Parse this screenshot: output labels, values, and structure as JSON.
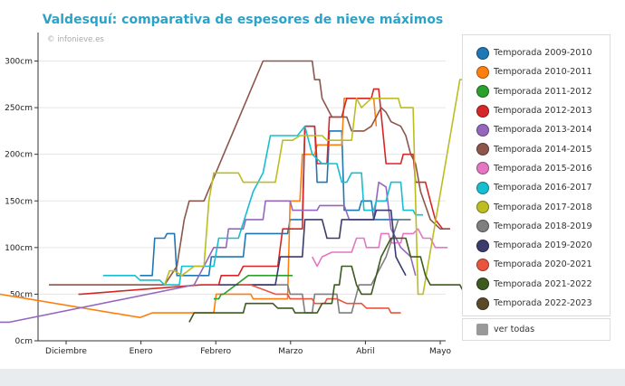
{
  "title": "Valdesquí: comparativa de espesores de nieve máximos",
  "watermark": "© infonieve.es",
  "show_all_label": "ver todas",
  "chart_data": {
    "type": "line",
    "title": "Valdesquí: comparativa de espesores de nieve máximos",
    "xlabel": "",
    "ylabel": "",
    "x_ticks": [
      "Diciembre",
      "Enero",
      "Febrero",
      "Marzo",
      "Abril",
      "Mayo"
    ],
    "y_ticks": [
      "0cm",
      "50cm",
      "100cm",
      "150cm",
      "200cm",
      "250cm",
      "300cm"
    ],
    "ylim": [
      0,
      330
    ],
    "xlim": [
      -40,
      233
    ],
    "grid": true,
    "legend_position": "right",
    "series": [
      {
        "name": "Temporada 2009-2010",
        "color": "#1f77b4",
        "points": [
          [
            30,
            70
          ],
          [
            35,
            70
          ],
          [
            36,
            110
          ],
          [
            40,
            110
          ],
          [
            41,
            115
          ],
          [
            44,
            115
          ],
          [
            45,
            70
          ],
          [
            58,
            70
          ],
          [
            59,
            90
          ],
          [
            72,
            90
          ],
          [
            73,
            115
          ],
          [
            90,
            115
          ],
          [
            91,
            130
          ],
          [
            96,
            130
          ],
          [
            97,
            230
          ],
          [
            101,
            230
          ],
          [
            102,
            170
          ],
          [
            106,
            170
          ],
          [
            107,
            225
          ],
          [
            112,
            225
          ],
          [
            113,
            140
          ],
          [
            119,
            140
          ],
          [
            120,
            150
          ],
          [
            124,
            150
          ],
          [
            125,
            130
          ],
          [
            140,
            130
          ]
        ]
      },
      {
        "name": "Temporada 2010-2011",
        "color": "#ff7f0e",
        "points": [
          [
            -31,
            50
          ],
          [
            -27,
            50
          ],
          [
            30,
            25
          ],
          [
            35,
            30
          ],
          [
            60,
            30
          ],
          [
            61,
            50
          ],
          [
            75,
            50
          ],
          [
            76,
            45
          ],
          [
            90,
            45
          ],
          [
            91,
            150
          ],
          [
            95,
            150
          ],
          [
            96,
            200
          ],
          [
            101,
            200
          ],
          [
            102,
            210
          ],
          [
            112,
            210
          ],
          [
            113,
            260
          ],
          [
            125,
            260
          ],
          [
            126,
            230
          ]
        ]
      },
      {
        "name": "Temporada 2011-2012",
        "color": "#2ca02c",
        "points": [
          [
            60,
            45
          ],
          [
            62,
            45
          ],
          [
            63,
            50
          ],
          [
            64,
            50
          ],
          [
            74,
            70
          ],
          [
            92,
            70
          ]
        ]
      },
      {
        "name": "Temporada 2012-2013",
        "color": "#d62728",
        "points": [
          [
            5,
            50
          ],
          [
            6,
            50
          ],
          [
            55,
            60
          ],
          [
            62,
            60
          ],
          [
            63,
            70
          ],
          [
            70,
            70
          ],
          [
            72,
            80
          ],
          [
            86,
            80
          ],
          [
            88,
            120
          ],
          [
            96,
            120
          ],
          [
            97,
            230
          ],
          [
            101,
            230
          ],
          [
            102,
            190
          ],
          [
            106,
            190
          ],
          [
            107,
            240
          ],
          [
            112,
            240
          ],
          [
            113,
            250
          ],
          [
            114,
            260
          ],
          [
            124,
            260
          ],
          [
            125,
            270
          ],
          [
            127,
            270
          ],
          [
            130,
            190
          ],
          [
            136,
            190
          ],
          [
            137,
            200
          ],
          [
            141,
            200
          ],
          [
            142,
            170
          ],
          [
            146,
            170
          ],
          [
            148,
            150
          ],
          [
            150,
            130
          ],
          [
            153,
            120
          ],
          [
            156,
            120
          ]
        ]
      },
      {
        "name": "Temporada 2013-2014",
        "color": "#9467bd",
        "points": [
          [
            -27,
            20
          ],
          [
            -23,
            20
          ],
          [
            52,
            60
          ],
          [
            56,
            80
          ],
          [
            60,
            100
          ],
          [
            65,
            100
          ],
          [
            66,
            120
          ],
          [
            72,
            120
          ],
          [
            73,
            130
          ],
          [
            80,
            130
          ],
          [
            81,
            150
          ],
          [
            91,
            150
          ],
          [
            92,
            140
          ],
          [
            102,
            140
          ],
          [
            103,
            145
          ],
          [
            113,
            145
          ],
          [
            115,
            130
          ],
          [
            125,
            130
          ],
          [
            127,
            170
          ],
          [
            130,
            165
          ],
          [
            132,
            120
          ],
          [
            136,
            100
          ],
          [
            140,
            90
          ],
          [
            141,
            80
          ],
          [
            142,
            70
          ]
        ]
      },
      {
        "name": "Temporada 2014-2015",
        "color": "#8c564b",
        "points": [
          [
            -7,
            60
          ],
          [
            40,
            60
          ],
          [
            45,
            80
          ],
          [
            48,
            130
          ],
          [
            50,
            150
          ],
          [
            56,
            150
          ],
          [
            80,
            300
          ],
          [
            100,
            300
          ],
          [
            101,
            280
          ],
          [
            103,
            280
          ],
          [
            104,
            260
          ],
          [
            108,
            240
          ],
          [
            114,
            240
          ],
          [
            116,
            225
          ],
          [
            121,
            225
          ],
          [
            124,
            230
          ],
          [
            128,
            250
          ],
          [
            130,
            245
          ],
          [
            132,
            235
          ],
          [
            136,
            230
          ],
          [
            138,
            220
          ],
          [
            140,
            200
          ],
          [
            142,
            190
          ],
          [
            144,
            160
          ],
          [
            148,
            130
          ],
          [
            152,
            120
          ],
          [
            156,
            120
          ]
        ]
      },
      {
        "name": "Temporada 2015-2016",
        "color": "#e377c2",
        "points": [
          [
            100,
            90
          ],
          [
            102,
            80
          ],
          [
            104,
            90
          ],
          [
            108,
            95
          ],
          [
            116,
            95
          ],
          [
            118,
            110
          ],
          [
            121,
            110
          ],
          [
            122,
            100
          ],
          [
            127,
            100
          ],
          [
            128,
            115
          ],
          [
            131,
            115
          ],
          [
            132,
            105
          ],
          [
            136,
            105
          ],
          [
            137,
            115
          ],
          [
            141,
            115
          ],
          [
            143,
            120
          ],
          [
            145,
            110
          ],
          [
            148,
            110
          ],
          [
            150,
            100
          ],
          [
            155,
            100
          ]
        ]
      },
      {
        "name": "Temporada 2016-2017",
        "color": "#17becf",
        "points": [
          [
            15,
            70
          ],
          [
            28,
            70
          ],
          [
            30,
            65
          ],
          [
            38,
            65
          ],
          [
            40,
            60
          ],
          [
            46,
            60
          ],
          [
            47,
            80
          ],
          [
            60,
            80
          ],
          [
            62,
            110
          ],
          [
            70,
            110
          ],
          [
            76,
            160
          ],
          [
            80,
            180
          ],
          [
            83,
            220
          ],
          [
            94,
            220
          ],
          [
            97,
            230
          ],
          [
            100,
            200
          ],
          [
            104,
            190
          ],
          [
            110,
            190
          ],
          [
            112,
            170
          ],
          [
            114,
            170
          ],
          [
            116,
            180
          ],
          [
            120,
            180
          ],
          [
            121,
            140
          ],
          [
            125,
            140
          ],
          [
            126,
            150
          ],
          [
            130,
            150
          ],
          [
            132,
            170
          ],
          [
            136,
            170
          ],
          [
            137,
            140
          ],
          [
            141,
            140
          ],
          [
            142,
            135
          ],
          [
            145,
            135
          ]
        ]
      },
      {
        "name": "Temporada 2017-2018",
        "color": "#bcbd22",
        "points": [
          [
            40,
            60
          ],
          [
            42,
            75
          ],
          [
            44,
            75
          ],
          [
            47,
            70
          ],
          [
            52,
            80
          ],
          [
            56,
            80
          ],
          [
            58,
            150
          ],
          [
            60,
            180
          ],
          [
            70,
            180
          ],
          [
            72,
            170
          ],
          [
            85,
            170
          ],
          [
            88,
            215
          ],
          [
            92,
            215
          ],
          [
            95,
            220
          ],
          [
            104,
            220
          ],
          [
            106,
            215
          ],
          [
            116,
            215
          ],
          [
            118,
            260
          ],
          [
            120,
            250
          ],
          [
            122,
            255
          ],
          [
            124,
            260
          ],
          [
            135,
            260
          ],
          [
            136,
            250
          ],
          [
            141,
            250
          ],
          [
            143,
            50
          ],
          [
            145,
            50
          ],
          [
            160,
            280
          ],
          [
            165,
            280
          ],
          [
            168,
            260
          ],
          [
            171,
            220
          ],
          [
            173,
            200
          ],
          [
            175,
            180
          ],
          [
            178,
            160
          ],
          [
            181,
            150
          ],
          [
            185,
            150
          ]
        ]
      },
      {
        "name": "Temporada 2018-2019",
        "color": "#7f7f7f",
        "points": [
          [
            74,
            60
          ],
          [
            80,
            60
          ],
          [
            90,
            60
          ],
          [
            91,
            50
          ],
          [
            96,
            50
          ],
          [
            97,
            30
          ],
          [
            100,
            30
          ],
          [
            101,
            50
          ],
          [
            110,
            50
          ],
          [
            111,
            30
          ],
          [
            116,
            30
          ],
          [
            119,
            60
          ],
          [
            124,
            60
          ],
          [
            130,
            90
          ],
          [
            135,
            130
          ],
          [
            140,
            130
          ]
        ]
      },
      {
        "name": "Temporada 2019-2020",
        "color": "#3b3b6e",
        "points": [
          [
            62,
            60
          ],
          [
            85,
            60
          ],
          [
            87,
            90
          ],
          [
            96,
            90
          ],
          [
            97,
            130
          ],
          [
            104,
            130
          ],
          [
            106,
            110
          ],
          [
            111,
            110
          ],
          [
            112,
            130
          ],
          [
            125,
            130
          ],
          [
            126,
            140
          ],
          [
            132,
            140
          ],
          [
            134,
            90
          ],
          [
            136,
            80
          ],
          [
            138,
            70
          ]
        ]
      },
      {
        "name": "Temporada 2020-2021",
        "color": "#e8553e",
        "points": [
          [
            70,
            60
          ],
          [
            75,
            60
          ],
          [
            80,
            55
          ],
          [
            85,
            50
          ],
          [
            90,
            50
          ],
          [
            91,
            45
          ],
          [
            100,
            45
          ],
          [
            101,
            40
          ],
          [
            105,
            40
          ],
          [
            106,
            45
          ],
          [
            110,
            45
          ],
          [
            114,
            40
          ],
          [
            120,
            40
          ],
          [
            122,
            35
          ],
          [
            131,
            35
          ],
          [
            132,
            30
          ],
          [
            136,
            30
          ]
        ]
      },
      {
        "name": "Temporada 2021-2022",
        "color": "#3d5a1f",
        "points": [
          [
            50,
            20
          ],
          [
            52,
            30
          ],
          [
            72,
            30
          ],
          [
            73,
            40
          ],
          [
            84,
            40
          ],
          [
            86,
            35
          ],
          [
            92,
            35
          ],
          [
            93,
            30
          ],
          [
            102,
            30
          ],
          [
            104,
            40
          ],
          [
            108,
            40
          ],
          [
            109,
            60
          ],
          [
            111,
            60
          ],
          [
            112,
            80
          ],
          [
            116,
            80
          ],
          [
            118,
            60
          ],
          [
            120,
            50
          ],
          [
            124,
            50
          ],
          [
            126,
            70
          ],
          [
            128,
            90
          ],
          [
            130,
            100
          ],
          [
            132,
            110
          ],
          [
            138,
            110
          ],
          [
            140,
            90
          ],
          [
            144,
            90
          ],
          [
            146,
            70
          ],
          [
            148,
            60
          ],
          [
            150,
            60
          ],
          [
            160,
            60
          ],
          [
            162,
            50
          ],
          [
            166,
            50
          ],
          [
            168,
            30
          ],
          [
            170,
            30
          ],
          [
            172,
            50
          ],
          [
            175,
            50
          ]
        ]
      },
      {
        "name": "Temporada 2022-2023",
        "color": "#5b4a2a",
        "points": [
          []
        ]
      }
    ]
  }
}
